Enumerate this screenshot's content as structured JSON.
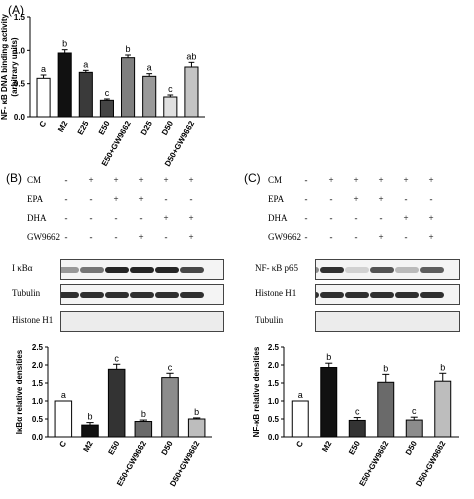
{
  "panels": {
    "a": {
      "tag": "(A)"
    },
    "b": {
      "tag": "(B)",
      "row_labels": [
        "CM",
        "EPA",
        "DHA",
        "GW9662"
      ],
      "treatment_signs": [
        [
          "-",
          "+",
          "+",
          "+",
          "+",
          "+"
        ],
        [
          "-",
          "-",
          "+",
          "+",
          "-",
          "-"
        ],
        [
          "-",
          "-",
          "-",
          "-",
          "+",
          "+"
        ],
        [
          "-",
          "-",
          "-",
          "+",
          "-",
          "+"
        ]
      ],
      "blot_labels": [
        "I κBα",
        "Tubulin",
        "Histone H1"
      ],
      "blot_intensity": [
        [
          0.45,
          0.6,
          0.95,
          0.95,
          0.95,
          0.8
        ],
        [
          0.9,
          0.9,
          0.9,
          0.9,
          0.9,
          0.9
        ],
        [
          0,
          0,
          0,
          0,
          0,
          0
        ]
      ]
    },
    "c": {
      "tag": "(C)",
      "row_labels": [
        "CM",
        "EPA",
        "DHA",
        "GW9662"
      ],
      "treatment_signs": [
        [
          "-",
          "+",
          "+",
          "+",
          "+",
          "+"
        ],
        [
          "-",
          "-",
          "+",
          "+",
          "-",
          "-"
        ],
        [
          "-",
          "-",
          "-",
          "-",
          "+",
          "+"
        ],
        [
          "-",
          "-",
          "-",
          "+",
          "-",
          "+"
        ]
      ],
      "blot_labels": [
        "NF- κB p65",
        "Histone H1",
        "Tubulin"
      ],
      "blot_intensity": [
        [
          0.5,
          0.9,
          0.2,
          0.75,
          0.3,
          0.7
        ],
        [
          0.9,
          0.9,
          0.9,
          0.9,
          0.9,
          0.9
        ],
        [
          0,
          0,
          0,
          0,
          0,
          0
        ]
      ]
    }
  },
  "chart_data": [
    {
      "type": "bar",
      "ylabel": "NF- κB DNA binding activity\n(arbitrary units)",
      "categories": [
        "C",
        "M2",
        "E25",
        "E50",
        "E50+GW9662",
        "D25",
        "D50",
        "D50+GW9662"
      ],
      "values": [
        0.58,
        0.96,
        0.67,
        0.25,
        0.89,
        0.61,
        0.3,
        0.75
      ],
      "errors": [
        0.05,
        0.05,
        0.03,
        0.02,
        0.04,
        0.04,
        0.03,
        0.07
      ],
      "letters": [
        "a",
        "b",
        "a",
        "c",
        "b",
        "a",
        "c",
        "ab"
      ],
      "colors": [
        "#ffffff",
        "#111111",
        "#3a3a3a",
        "#444444",
        "#7f7f7f",
        "#9a9a9a",
        "#e0e0e0",
        "#c4c4c4"
      ],
      "ylim": [
        0,
        1.5
      ],
      "yticks": [
        "0.0",
        "0.5",
        "1.0",
        "1.5"
      ]
    },
    {
      "type": "bar",
      "ylabel": "IκBα relative densities",
      "categories": [
        "C",
        "M2",
        "E50",
        "E50+GW9662",
        "D50",
        "D50+GW9662"
      ],
      "values": [
        1.0,
        0.33,
        1.88,
        0.43,
        1.65,
        0.5
      ],
      "errors": [
        0.0,
        0.07,
        0.14,
        0.04,
        0.12,
        0.03
      ],
      "letters": [
        "a",
        "b",
        "c",
        "b",
        "c",
        "b"
      ],
      "colors": [
        "#ffffff",
        "#111111",
        "#333333",
        "#6a6a6a",
        "#8c8c8c",
        "#bdbdbd"
      ],
      "ylim": [
        0,
        2.5
      ],
      "yticks": [
        "0.0",
        "0.5",
        "1.0",
        "1.5",
        "2.0",
        "2.5"
      ]
    },
    {
      "type": "bar",
      "ylabel": "NF-κB relative densities",
      "categories": [
        "C",
        "M2",
        "E50",
        "E50+GW9662",
        "D50",
        "D50+GW9662"
      ],
      "values": [
        1.0,
        1.93,
        0.46,
        1.52,
        0.47,
        1.55
      ],
      "errors": [
        0.0,
        0.12,
        0.08,
        0.22,
        0.08,
        0.22
      ],
      "letters": [
        "a",
        "b",
        "c",
        "b",
        "c",
        "b"
      ],
      "colors": [
        "#ffffff",
        "#111111",
        "#333333",
        "#6a6a6a",
        "#8c8c8c",
        "#bdbdbd"
      ],
      "ylim": [
        0,
        2.5
      ],
      "yticks": [
        "0.0",
        "0.5",
        "1.0",
        "1.5",
        "2.0",
        "2.5"
      ]
    }
  ]
}
